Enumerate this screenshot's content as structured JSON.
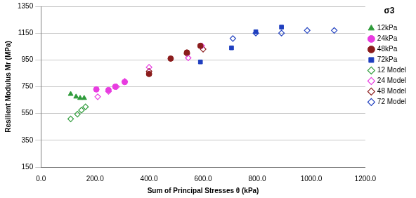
{
  "chart_data": {
    "type": "scatter",
    "x_label": "Sum of Principal Stresses θ (kPa)",
    "y_label": "Resilient Modulus Mr (MPa)",
    "legend_title": "σ3",
    "legend": "right",
    "grid": "y",
    "xlim": [
      0,
      1200
    ],
    "xticks": [
      {
        "value": 0,
        "label": "0.0"
      },
      {
        "value": 200,
        "label": "200.0"
      },
      {
        "value": 400,
        "label": "400.0"
      },
      {
        "value": 600,
        "label": "600.0"
      },
      {
        "value": 800,
        "label": "800.0"
      },
      {
        "value": 1000,
        "label": "1000.0"
      },
      {
        "value": 1200,
        "label": "1200.0"
      }
    ],
    "ylim": [
      150,
      1350
    ],
    "yticks": [
      150,
      350,
      550,
      750,
      950,
      1150,
      1350
    ],
    "series": [
      {
        "name": "12kPa",
        "color": "#2e9b3a",
        "marker": "triangle",
        "x": [
          110,
          130,
          145,
          160
        ],
        "values": [
          695,
          675,
          665,
          665
        ]
      },
      {
        "name": "24kPa",
        "color": "#e83ce0",
        "marker": "circle",
        "x": [
          205,
          250,
          275,
          310
        ],
        "values": [
          730,
          725,
          750,
          785
        ]
      },
      {
        "name": "48kPa",
        "color": "#8b1c1c",
        "marker": "circle",
        "x": [
          400,
          480,
          540,
          590
        ],
        "values": [
          845,
          960,
          1005,
          1055
        ]
      },
      {
        "name": "72kPa",
        "color": "#1f3fbf",
        "marker": "square",
        "x": [
          590,
          705,
          795,
          890
        ],
        "values": [
          935,
          1040,
          1160,
          1195
        ]
      },
      {
        "name": "12 Model",
        "color": "#2e9b3a",
        "marker": "diamond",
        "x": [
          110,
          135,
          150,
          165
        ],
        "values": [
          510,
          545,
          575,
          600
        ]
      },
      {
        "name": "24 Model",
        "color": "#e83ce0",
        "marker": "diamond",
        "x": [
          210,
          250,
          280,
          310,
          400,
          545,
          595
        ],
        "values": [
          675,
          715,
          750,
          790,
          895,
          965,
          1055
        ]
      },
      {
        "name": "48 Model",
        "color": "#8b1c1c",
        "marker": "diamond",
        "x": [
          400,
          540,
          600
        ],
        "values": [
          865,
          995,
          1030
        ]
      },
      {
        "name": "72 Model",
        "color": "#1f3fbf",
        "marker": "diamond",
        "x": [
          710,
          795,
          890,
          985,
          1085
        ],
        "values": [
          1110,
          1150,
          1150,
          1170,
          1170
        ]
      }
    ]
  }
}
